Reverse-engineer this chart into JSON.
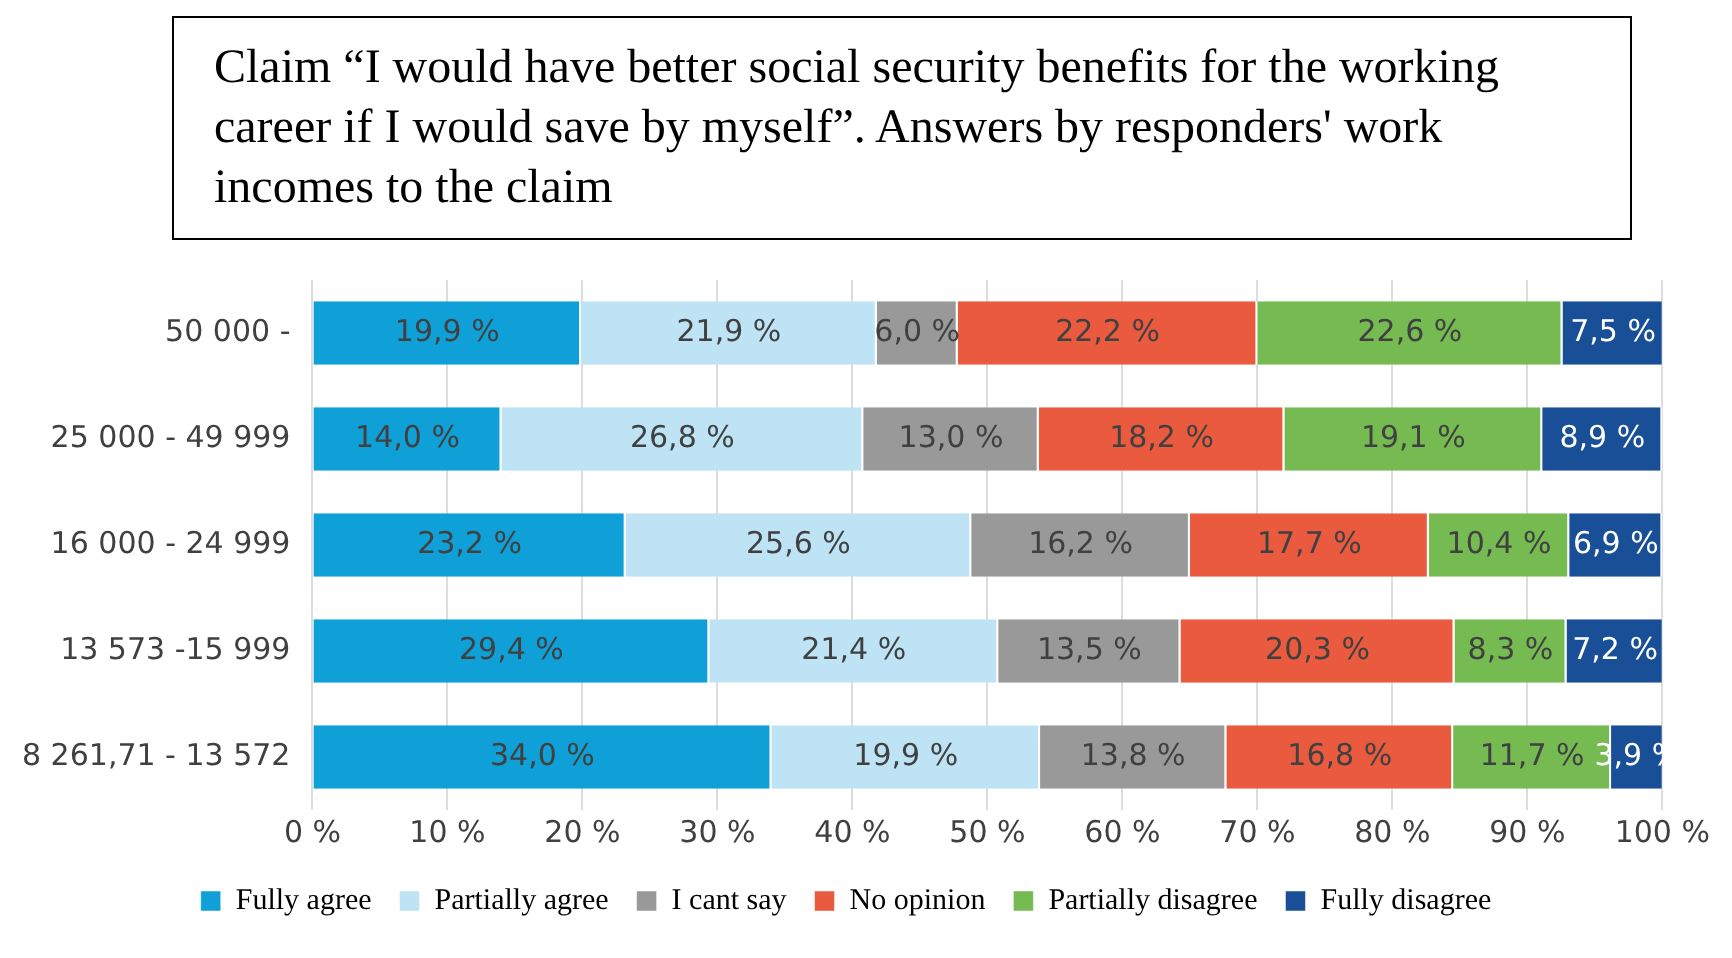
{
  "chart_data": {
    "type": "bar",
    "title": "Claim “I would have better social security benefits for the working career if I would save by myself”. Answers by responders' work incomes to the claim",
    "orientation": "horizontal",
    "stacked": true,
    "categories": [
      "50 000 -",
      "25 000 - 49 999",
      "16 000 - 24 999",
      "13 573 -15 999",
      "8 261,71 - 13 572"
    ],
    "series": [
      {
        "name": "Fully agree",
        "color": "#0ea0d6",
        "values": [
          19.9,
          14.0,
          23.2,
          29.4,
          34.0
        ],
        "value_labels": [
          "19,9 %",
          "14,0 %",
          "23,2 %",
          "29,4 %",
          "34,0 %"
        ]
      },
      {
        "name": "Partially agree",
        "color": "#bde3f5",
        "values": [
          21.9,
          26.8,
          25.6,
          21.4,
          19.9
        ],
        "value_labels": [
          "21,9 %",
          "26,8 %",
          "25,6 %",
          "21,4 %",
          "19,9 %"
        ]
      },
      {
        "name": "I cant say",
        "color": "#999999",
        "values": [
          6.0,
          13.0,
          16.2,
          13.5,
          13.8
        ],
        "value_labels": [
          "6,0 %",
          "13,0 %",
          "16,2 %",
          "13,5 %",
          "13,8 %"
        ]
      },
      {
        "name": "No opinion",
        "color": "#e95a3f",
        "values": [
          22.2,
          18.2,
          17.7,
          20.3,
          16.8
        ],
        "value_labels": [
          "22,2 %",
          "18,2 %",
          "17,7 %",
          "20,3 %",
          "16,8 %"
        ]
      },
      {
        "name": "Partially disagree",
        "color": "#75bb52",
        "values": [
          22.6,
          19.1,
          10.4,
          8.3,
          11.7
        ],
        "value_labels": [
          "22,6 %",
          "19,1 %",
          "10,4 %",
          "8,3 %",
          "11,7 %"
        ]
      },
      {
        "name": "Fully disagree",
        "color": "#194f97",
        "values": [
          7.5,
          8.9,
          6.9,
          7.2,
          3.9
        ],
        "value_labels": [
          "7,5 %",
          "8,9 %",
          "6,9 %",
          "7,2 %",
          "3,9 %"
        ]
      }
    ],
    "xlim": [
      0,
      100
    ],
    "xticks": [
      {
        "value": 0,
        "label": "0 %"
      },
      {
        "value": 10,
        "label": "10 %"
      },
      {
        "value": 20,
        "label": "20 %"
      },
      {
        "value": 30,
        "label": "30 %"
      },
      {
        "value": 40,
        "label": "40 %"
      },
      {
        "value": 50,
        "label": "50 %"
      },
      {
        "value": 60,
        "label": "60 %"
      },
      {
        "value": 70,
        "label": "70 %"
      },
      {
        "value": 80,
        "label": "80 %"
      },
      {
        "value": 90,
        "label": "90 %"
      },
      {
        "value": 100,
        "label": "100 %"
      }
    ],
    "grid": "x",
    "legend": "bottom"
  }
}
